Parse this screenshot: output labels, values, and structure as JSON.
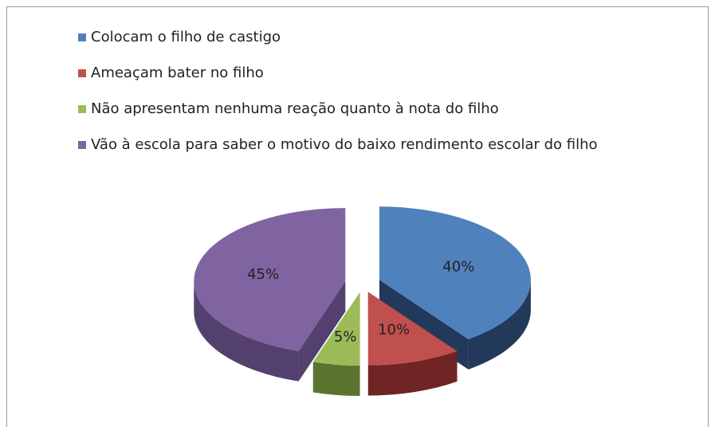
{
  "chart_data": {
    "type": "pie",
    "three_d": true,
    "exploded": true,
    "categories": [
      "Colocam o filho de castigo",
      "Ameaçam bater no filho",
      "Não apresentam nenhuma reação quanto à nota do filho",
      "Vão à escola para saber o motivo do baixo rendimento escolar do filho"
    ],
    "values": [
      40,
      10,
      5,
      45
    ],
    "value_labels": [
      "40%",
      "10%",
      "5%",
      "45%"
    ],
    "colors": [
      "#4F81BD",
      "#C0504D",
      "#9BBB59",
      "#8064A2"
    ],
    "side_colors": [
      "#22395A",
      "#6E2523",
      "#5A7430",
      "#54406E"
    ],
    "legend": "top"
  }
}
